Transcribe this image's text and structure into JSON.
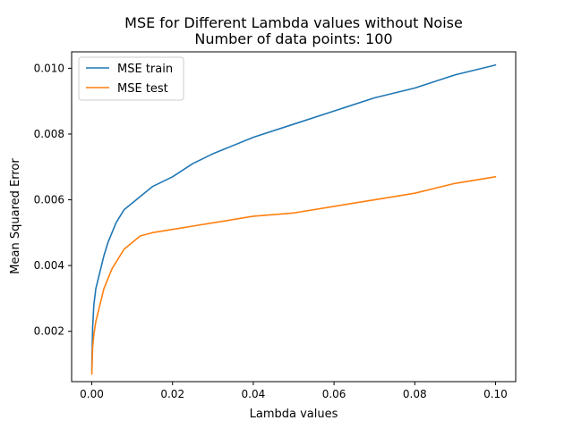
{
  "chart_data": {
    "type": "line",
    "title": "MSE for Different Lambda values without Noise",
    "subtitle": "Number of data points: 100",
    "xlabel": "Lambda values",
    "ylabel": "Mean Squared Error",
    "xlim": [
      -0.005,
      0.105
    ],
    "ylim": [
      0.00047,
      0.0105
    ],
    "xticks": [
      0.0,
      0.02,
      0.04,
      0.06,
      0.08,
      0.1
    ],
    "xtick_labels": [
      "0.00",
      "0.02",
      "0.04",
      "0.06",
      "0.08",
      "0.10"
    ],
    "yticks": [
      0.002,
      0.004,
      0.006,
      0.008,
      0.01
    ],
    "ytick_labels": [
      "0.002",
      "0.004",
      "0.006",
      "0.008",
      "0.010"
    ],
    "grid": false,
    "legend_position": "top-left",
    "series": [
      {
        "name": "MSE train",
        "color": "#1f77b4",
        "x": [
          0.0,
          0.0002,
          0.0005,
          0.001,
          0.002,
          0.003,
          0.004,
          0.005,
          0.006,
          0.008,
          0.01,
          0.012,
          0.015,
          0.02,
          0.025,
          0.03,
          0.04,
          0.05,
          0.06,
          0.07,
          0.08,
          0.09,
          0.1
        ],
        "y": [
          0.00082,
          0.0021,
          0.0028,
          0.0033,
          0.0038,
          0.0043,
          0.0047,
          0.005,
          0.0053,
          0.0057,
          0.0059,
          0.0061,
          0.0064,
          0.0067,
          0.0071,
          0.0074,
          0.0079,
          0.0083,
          0.0087,
          0.0091,
          0.0094,
          0.0098,
          0.0101
        ]
      },
      {
        "name": "MSE test",
        "color": "#ff7f0e",
        "x": [
          0.0,
          0.0002,
          0.0005,
          0.001,
          0.002,
          0.003,
          0.004,
          0.005,
          0.006,
          0.008,
          0.01,
          0.012,
          0.015,
          0.02,
          0.025,
          0.03,
          0.04,
          0.05,
          0.06,
          0.07,
          0.08,
          0.09,
          0.1
        ],
        "y": [
          0.0007,
          0.0015,
          0.0019,
          0.0023,
          0.0028,
          0.0033,
          0.0036,
          0.0039,
          0.0041,
          0.0045,
          0.0047,
          0.0049,
          0.005,
          0.0051,
          0.0052,
          0.0053,
          0.0055,
          0.0056,
          0.0058,
          0.006,
          0.0062,
          0.0065,
          0.0067
        ]
      }
    ]
  }
}
